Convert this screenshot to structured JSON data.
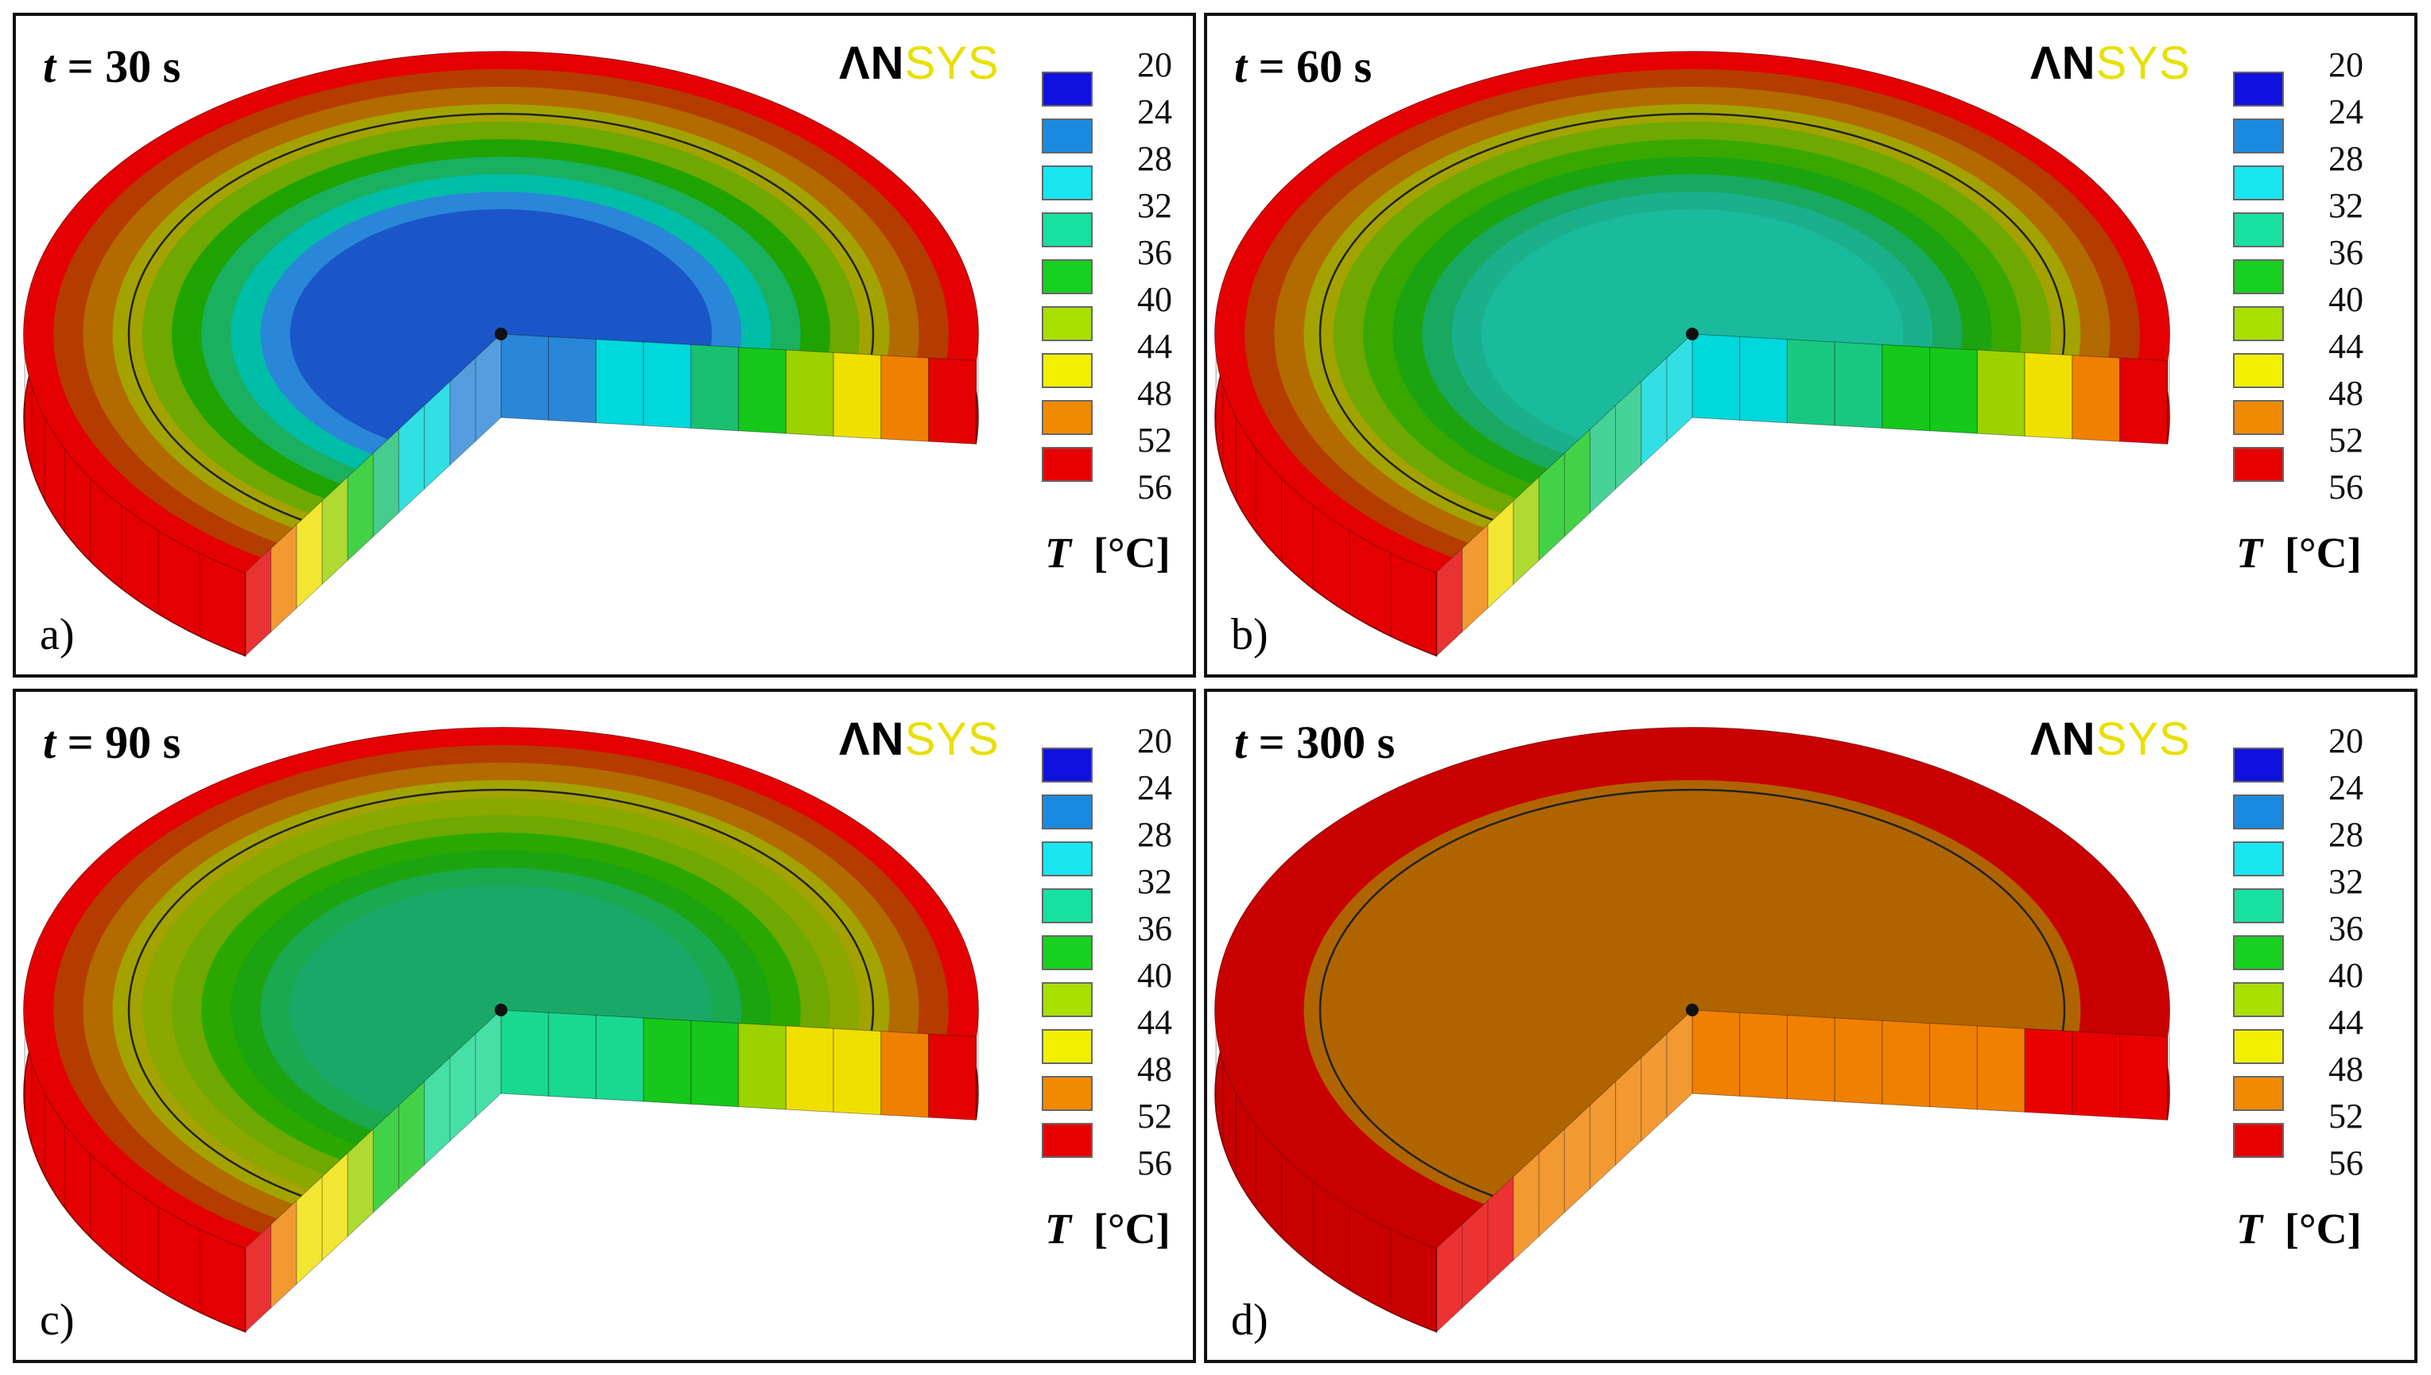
{
  "panels": [
    {
      "time_var": "t",
      "time_text": "= 30 s",
      "letter": "a)",
      "rings": [
        "#e40000",
        "#b43c00",
        "#b36a00",
        "#a3a300",
        "#6ea800",
        "#1fa300",
        "#19b060",
        "#00bda8",
        "#2a86d8",
        "#1a56c8"
      ],
      "ring_temps": [
        56,
        54,
        52,
        50,
        46,
        42,
        38,
        34,
        30,
        28
      ],
      "side": [
        "#2a86d8",
        "#2a86d8",
        "#00d8dc",
        "#00d8dc",
        "#19c070",
        "#15c81a",
        "#9bd200",
        "#f0e000",
        "#f08000",
        "#e40000"
      ]
    },
    {
      "time_var": "t",
      "time_text": "= 60 s",
      "letter": "b)",
      "rings": [
        "#e40000",
        "#b43c00",
        "#b36a00",
        "#a3a300",
        "#6ea800",
        "#38a800",
        "#1ca410",
        "#19a860",
        "#1ab08c",
        "#1aba9c"
      ],
      "ring_temps": [
        56,
        54,
        52,
        50,
        46,
        42,
        40,
        38,
        36,
        34
      ],
      "side": [
        "#00d8dc",
        "#00d8dc",
        "#19c880",
        "#19c880",
        "#15c81a",
        "#15c81a",
        "#9bd200",
        "#f0e000",
        "#f08000",
        "#e40000"
      ]
    },
    {
      "time_var": "t",
      "time_text": "= 90 s",
      "letter": "c)",
      "rings": [
        "#e40000",
        "#b43c00",
        "#b36a00",
        "#a3a300",
        "#8aa800",
        "#6ea800",
        "#2aa800",
        "#1ca410",
        "#1aa850",
        "#1aa868"
      ],
      "ring_temps": [
        56,
        54,
        52,
        50,
        48,
        46,
        42,
        40,
        38,
        36
      ],
      "side": [
        "#19d890",
        "#19d890",
        "#19d890",
        "#15c81a",
        "#15c81a",
        "#9bd200",
        "#f0e000",
        "#f0e000",
        "#f08000",
        "#e40000"
      ]
    },
    {
      "time_var": "t",
      "time_text": "= 300 s",
      "letter": "d)",
      "rings": [
        "#c80000",
        "#c80000",
        "#c80000",
        "#b06400",
        "#b06400",
        "#b06400",
        "#b06400",
        "#b06400",
        "#b06400",
        "#b06400"
      ],
      "ring_temps": [
        56,
        56,
        56,
        52,
        52,
        52,
        52,
        52,
        52,
        52
      ],
      "side": [
        "#f08000",
        "#f08000",
        "#f08000",
        "#f08000",
        "#f08000",
        "#f08000",
        "#f08000",
        "#e80000",
        "#e80000",
        "#e80000"
      ]
    }
  ],
  "brand": {
    "part1": "ΛN",
    "part2": "SYS"
  },
  "legend": {
    "labels": [
      "20",
      "24",
      "28",
      "32",
      "36",
      "40",
      "44",
      "48",
      "52",
      "56"
    ],
    "colors": [
      "#1010e0",
      "#1a8ae0",
      "#18e6f0",
      "#18e0a0",
      "#18d020",
      "#a8e000",
      "#f0f000",
      "#f08a00",
      "#e80000"
    ]
  },
  "unit": {
    "var": "T",
    "unit": "[°C]"
  }
}
